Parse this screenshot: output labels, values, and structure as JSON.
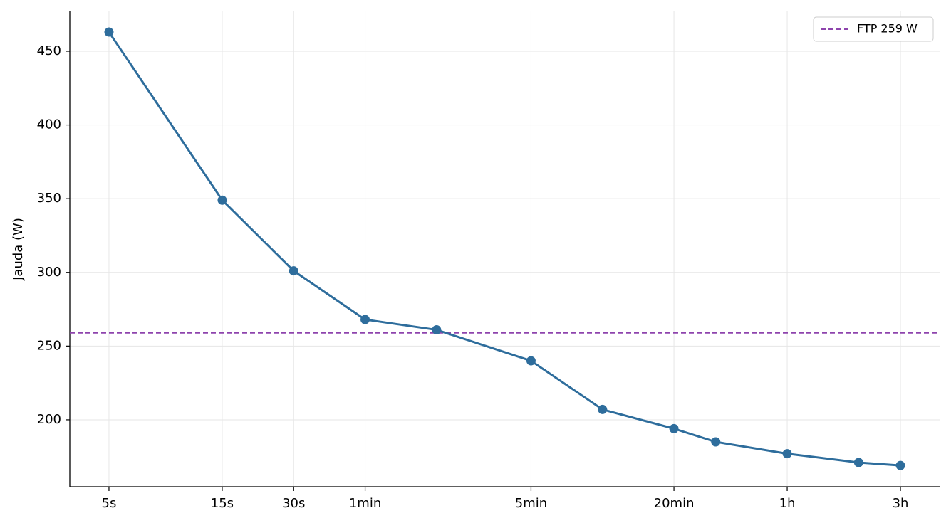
{
  "chart_data": {
    "type": "line",
    "y_label": "Jauda (W)",
    "x_scale": "log",
    "x": [
      5,
      15,
      30,
      60,
      120,
      300,
      600,
      1200,
      1800,
      3600,
      7200,
      10800
    ],
    "series": [
      {
        "color": "#2e6d9c",
        "values": [
          463,
          349,
          301,
          268,
          261,
          240,
          207,
          194,
          185,
          177,
          171,
          169
        ]
      }
    ],
    "reference_lines": [
      {
        "value": 259,
        "label": "FTP 259 W",
        "color": "#8e44ad"
      }
    ],
    "xlim": [
      3.42,
      15900
    ],
    "ylim": [
      154.6,
      477.5
    ],
    "xticks": [
      {
        "value": 5,
        "label": "5s"
      },
      {
        "value": 15,
        "label": "15s"
      },
      {
        "value": 30,
        "label": "30s"
      },
      {
        "value": 60,
        "label": "1min"
      },
      {
        "value": 300,
        "label": "5min"
      },
      {
        "value": 1200,
        "label": "20min"
      },
      {
        "value": 3600,
        "label": "1h"
      },
      {
        "value": 10800,
        "label": "3h"
      }
    ],
    "yticks": [
      200,
      250,
      300,
      350,
      400,
      450
    ],
    "grid": true,
    "legend_position": "upper right"
  }
}
